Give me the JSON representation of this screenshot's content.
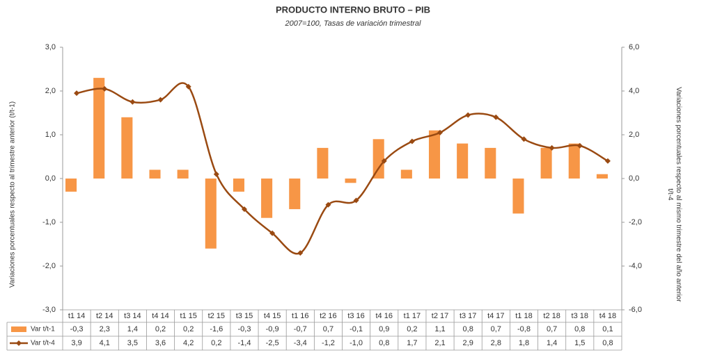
{
  "chart_data": {
    "type": "bar_line_table",
    "title": "PRODUCTO INTERNO BRUTO – PIB",
    "subtitle": "2007=100, Tasas de variación trimestral",
    "ylabel": "Variaciones porcentuales respecto al trimestre anterior (t/t-1)",
    "y2label": "Variaciones porcentuales respecto al mismo trimestre del año anterior t/t-4",
    "categories": [
      "t1 14",
      "t2 14",
      "t3 14",
      "t4 14",
      "t1 15",
      "t2 15",
      "t3 15",
      "t4 15",
      "t1 16",
      "t2 16",
      "t3 16",
      "t4 16",
      "t1 17",
      "t2 17",
      "t3 17",
      "t4 17",
      "t1 18",
      "t2 18",
      "t3 18",
      "t4 18"
    ],
    "series": [
      {
        "name": "Var t/t-1",
        "type": "bar",
        "color": "#f79646",
        "values": [
          -0.3,
          2.3,
          1.4,
          0.2,
          0.2,
          -1.6,
          -0.3,
          -0.9,
          -0.7,
          0.7,
          -0.1,
          0.9,
          0.2,
          1.1,
          0.8,
          0.7,
          -0.8,
          0.7,
          0.8,
          0.1
        ],
        "value_labels": [
          "-0,3",
          "2,3",
          "1,4",
          "0,2",
          "0,2",
          "-1,6",
          "-0,3",
          "-0,9",
          "-0,7",
          "0,7",
          "-0,1",
          "0,9",
          "0,2",
          "1,1",
          "0,8",
          "0,7",
          "-0,8",
          "0,7",
          "0,8",
          "0,1"
        ]
      },
      {
        "name": "Var t/t-4",
        "type": "line",
        "axis": "y2",
        "color": "#9a4a12",
        "values": [
          3.9,
          4.1,
          3.5,
          3.6,
          4.2,
          0.2,
          -1.4,
          -2.5,
          -3.4,
          -1.2,
          -1.0,
          0.8,
          1.7,
          2.1,
          2.9,
          2.8,
          1.8,
          1.4,
          1.5,
          0.8
        ],
        "value_labels": [
          "3,9",
          "4,1",
          "3,5",
          "3,6",
          "4,2",
          "0,2",
          "-1,4",
          "-2,5",
          "-3,4",
          "-1,2",
          "-1,0",
          "0,8",
          "1,7",
          "2,1",
          "2,9",
          "2,8",
          "1,8",
          "1,4",
          "1,5",
          "0,8"
        ]
      }
    ],
    "ylim": [
      -3,
      3
    ],
    "yticks": [
      {
        "value": -3,
        "label": "-3,0"
      },
      {
        "value": -2,
        "label": "-2,0"
      },
      {
        "value": -1,
        "label": "-1,0"
      },
      {
        "value": 0,
        "label": "0,0"
      },
      {
        "value": 1,
        "label": "1,0"
      },
      {
        "value": 2,
        "label": "2,0"
      },
      {
        "value": 3,
        "label": "3,0"
      }
    ],
    "y2lim": [
      -6,
      6
    ],
    "y2ticks": [
      {
        "value": -6,
        "label": "-6,0"
      },
      {
        "value": -4,
        "label": "-4,0"
      },
      {
        "value": -2,
        "label": "-2,0"
      },
      {
        "value": 0,
        "label": "0,0"
      },
      {
        "value": 2,
        "label": "2,0"
      },
      {
        "value": 4,
        "label": "4,0"
      },
      {
        "value": 6,
        "label": "6,0"
      }
    ],
    "grid": false
  }
}
